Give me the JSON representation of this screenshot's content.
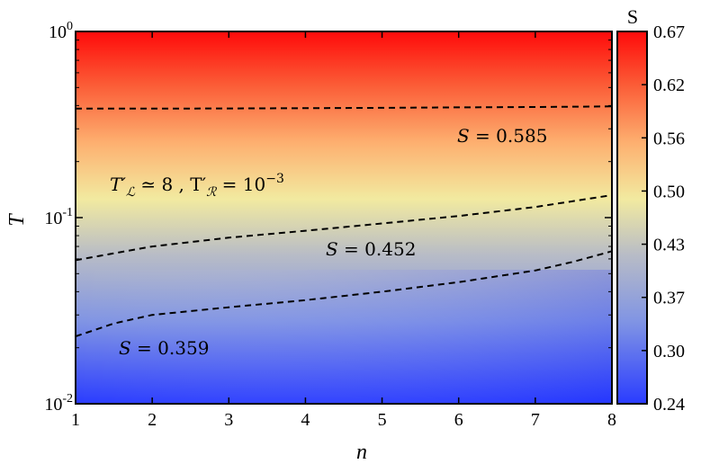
{
  "chart_data": {
    "type": "heatmap",
    "title": "",
    "xlabel": "n",
    "ylabel": "T",
    "xlim": [
      1,
      8
    ],
    "ylim": [
      0.01,
      1
    ],
    "yscale": "log",
    "x_ticks": [
      "1",
      "2",
      "3",
      "4",
      "5",
      "6",
      "7",
      "8"
    ],
    "y_ticks": [
      {
        "base": "10",
        "exp": "-2",
        "value": 0.01
      },
      {
        "base": "10",
        "exp": "-1",
        "value": 0.1
      },
      {
        "base": "10",
        "exp": "0",
        "value": 1
      }
    ],
    "colorbar": {
      "title": "S",
      "range": [
        0.24,
        0.67
      ],
      "ticks": [
        "0.67",
        "0.62",
        "0.56",
        "0.50",
        "0.43",
        "0.37",
        "0.30",
        "0.24"
      ],
      "colors": [
        "#2a3cff",
        "#8094e4",
        "#b8bcc6",
        "#f2eaa0",
        "#fdb070",
        "#fb5a35",
        "#ff0a0a"
      ]
    },
    "contours": [
      {
        "level_label": "S = 0.585",
        "points": [
          [
            1,
            0.385
          ],
          [
            2,
            0.385
          ],
          [
            3,
            0.386
          ],
          [
            4,
            0.387
          ],
          [
            5,
            0.389
          ],
          [
            6,
            0.391
          ],
          [
            7,
            0.393
          ],
          [
            8,
            0.396
          ]
        ]
      },
      {
        "level_label": "S = 0.452",
        "points": [
          [
            1,
            0.059
          ],
          [
            2,
            0.07
          ],
          [
            3,
            0.078
          ],
          [
            4,
            0.085
          ],
          [
            5,
            0.093
          ],
          [
            6,
            0.102
          ],
          [
            7,
            0.114
          ],
          [
            8,
            0.132
          ]
        ]
      },
      {
        "level_label": "S = 0.359",
        "points": [
          [
            1,
            0.023
          ],
          [
            1.5,
            0.027
          ],
          [
            2,
            0.03
          ],
          [
            3,
            0.033
          ],
          [
            4,
            0.036
          ],
          [
            5,
            0.04
          ],
          [
            6,
            0.045
          ],
          [
            7,
            0.052
          ],
          [
            7.5,
            0.058
          ],
          [
            8,
            0.066
          ]
        ]
      }
    ],
    "annotations": [
      {
        "prefix": "T′",
        "sub1": "ℒ",
        "mid": " ≃ 8 , T′",
        "sub2": "ℛ",
        "tail": " = 10",
        "exp": "−3"
      }
    ],
    "grid": false,
    "legend": "none"
  }
}
